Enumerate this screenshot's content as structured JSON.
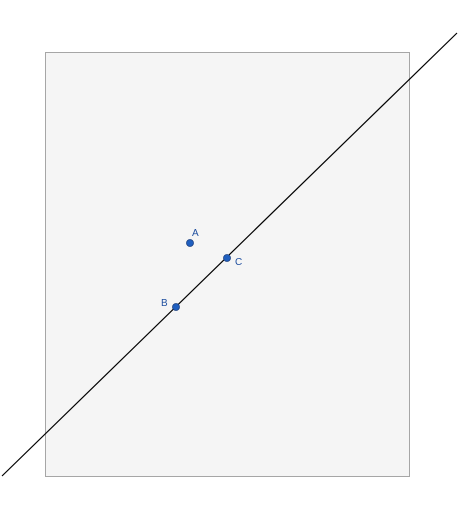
{
  "colors": {
    "background": "#ffffff",
    "panel_fill": "#f5f5f5",
    "panel_border": "#a6a6a6",
    "line": "#000000",
    "point_fill": "#1f5fbf",
    "point_stroke": "#1a3f80",
    "label": "#1f4f9f"
  },
  "points": [
    {
      "id": "A",
      "label": "A"
    },
    {
      "id": "B",
      "label": "B"
    },
    {
      "id": "C",
      "label": "C"
    }
  ],
  "line": {
    "through": [
      "B",
      "C"
    ]
  }
}
